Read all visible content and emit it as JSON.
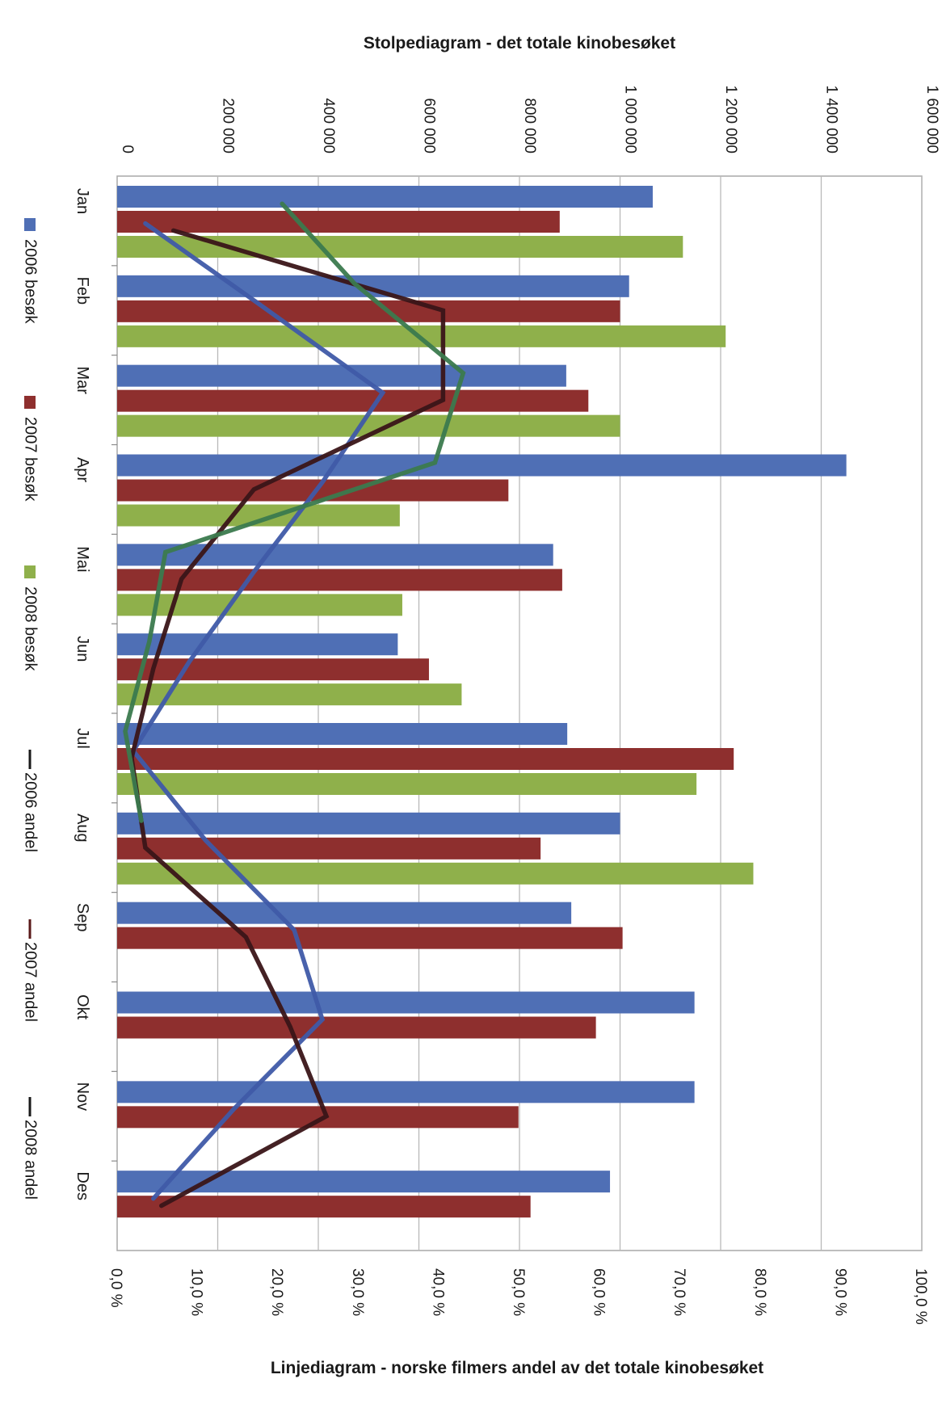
{
  "chart_data": {
    "type": "bar",
    "orientation": "rotated-90-clockwise",
    "title": "Stolpediagram -  det totale kinobesøket",
    "secondary_title": "Linjediagram - norske filmers andel av det totale kinobesøket",
    "categories": [
      "Jan",
      "Feb",
      "Mar",
      "Apr",
      "Mai",
      "Jun",
      "Jul",
      "Aug",
      "Sep",
      "Okt",
      "Nov",
      "Des"
    ],
    "value_axis": {
      "range": [
        0,
        1600000
      ],
      "ticks": [
        0,
        200000,
        400000,
        600000,
        800000,
        1000000,
        1200000,
        1400000,
        1600000
      ],
      "tick_labels": [
        "0",
        "200 000",
        "400 000",
        "600 000",
        "800 000",
        "1 000 000",
        "1 200 000",
        "1 400 000",
        "1 600 000"
      ],
      "grid": true
    },
    "share_axis": {
      "range": [
        0,
        100
      ],
      "ticks": [
        0,
        10,
        20,
        30,
        40,
        50,
        60,
        70,
        80,
        90,
        100
      ],
      "tick_labels": [
        "0,0 %",
        "10,0 %",
        "20,0 %",
        "30,0 %",
        "40,0 %",
        "50,0 %",
        "60,0 %",
        "70,0 %",
        "80,0 %",
        "90,0 %",
        "100,0 %"
      ]
    },
    "bar_series": [
      {
        "name": "2006 besøk",
        "color": "#4f6fb5",
        "values": [
          1065000,
          1018000,
          893000,
          1450000,
          867000,
          558000,
          895000,
          1000000,
          903000,
          1148000,
          1148000,
          980000
        ]
      },
      {
        "name": "2007 besøk",
        "color": "#8e2f2e",
        "values": [
          880000,
          1000000,
          937000,
          778000,
          885000,
          620000,
          1226000,
          842000,
          1005000,
          952000,
          798000,
          822000
        ]
      },
      {
        "name": "2008 besøk",
        "color": "#8fb04b",
        "values": [
          1125000,
          1210000,
          1000000,
          562000,
          567000,
          685000,
          1152000,
          1265000,
          null,
          null,
          null,
          null
        ]
      }
    ],
    "line_series": [
      {
        "name": "2006 andel",
        "color": "#3f5aa8",
        "values": [
          3.5,
          17.5,
          33.0,
          25.5,
          17.0,
          9.0,
          2.0,
          11.0,
          22.0,
          25.5,
          14.5,
          4.5
        ]
      },
      {
        "name": "2007 andel",
        "color": "#3a1518",
        "values": [
          7.0,
          40.5,
          40.5,
          17.0,
          8.0,
          4.5,
          1.8,
          3.5,
          16.0,
          21.5,
          26.0,
          5.5
        ]
      },
      {
        "name": "2008 andel",
        "color": "#3b7a4e",
        "values": [
          20.5,
          29.5,
          43.0,
          39.5,
          6.0,
          4.0,
          1.0,
          3.0,
          null,
          null,
          null,
          null
        ]
      }
    ],
    "legend": {
      "placement": "left",
      "entries": [
        {
          "label": "2006 besøk",
          "kind": "bar",
          "color": "#4f6fb5"
        },
        {
          "label": "2007 besøk",
          "kind": "bar",
          "color": "#8e2f2e"
        },
        {
          "label": "2008 besøk",
          "kind": "bar",
          "color": "#8fb04b"
        },
        {
          "label": "2006 andel",
          "kind": "line",
          "color": "#1a1a1a"
        },
        {
          "label": "2007 andel",
          "kind": "line",
          "color": "#5a1a1a"
        },
        {
          "label": "2008 andel",
          "kind": "line",
          "color": "#1a1a1a"
        }
      ]
    }
  }
}
